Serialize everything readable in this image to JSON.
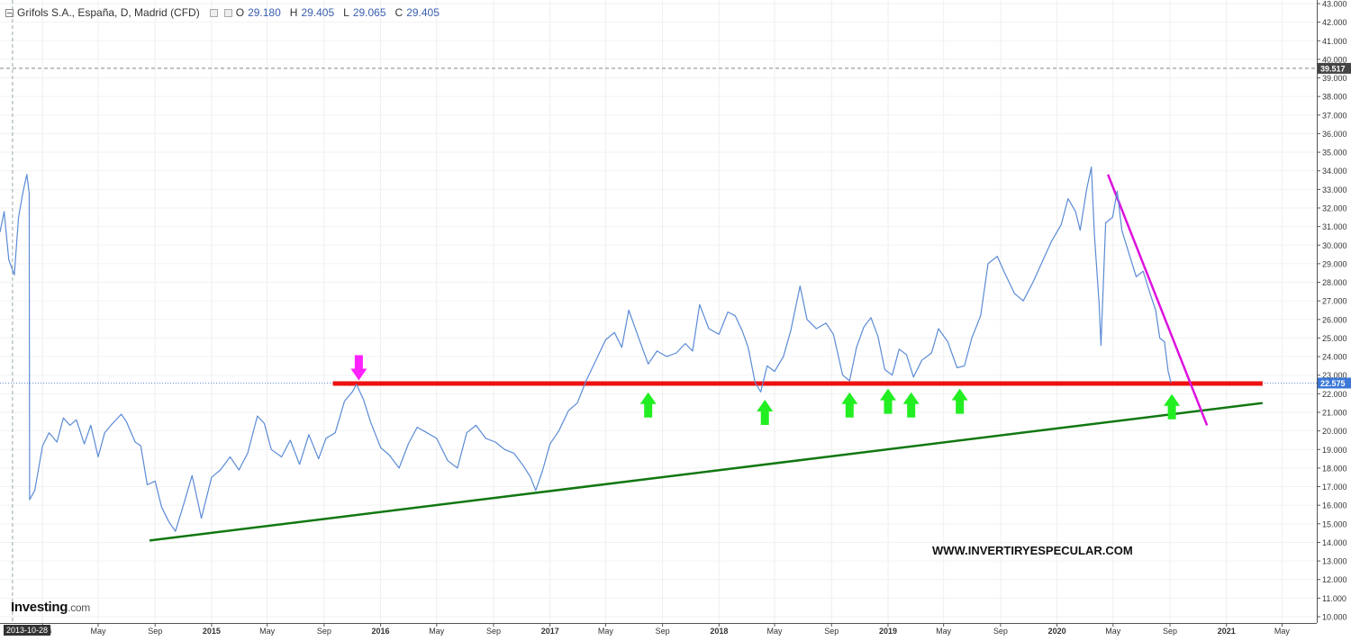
{
  "legend": {
    "title": "Grifols S.A., España, D, Madrid (CFD)",
    "o_label": "O",
    "o_value": "29.180",
    "h_label": "H",
    "h_value": "29.405",
    "l_label": "L",
    "l_value": "29.065",
    "c_label": "C",
    "c_value": "29.405"
  },
  "logo": {
    "main": "Investing",
    "domain": ".com"
  },
  "watermark": "WWW.INVERTIRYESPECULAR.COM",
  "cursor_date": "2013-10-28",
  "colors": {
    "line": "#5b8bd6",
    "support": "#ee1111",
    "trend": "#117711",
    "down": "#dd11dd",
    "up_arrow": "#22ee22",
    "down_arrow": "#ff22ff"
  },
  "chart_data": {
    "type": "line",
    "ylim": [
      10,
      43
    ],
    "xlim": [
      "2013-10-01",
      "2021-07-15"
    ],
    "y_ticks": [
      "10.000",
      "11.000",
      "12.000",
      "13.000",
      "14.000",
      "15.000",
      "16.000",
      "17.000",
      "18.000",
      "19.000",
      "20.000",
      "21.000",
      "22.000",
      "23.000",
      "24.000",
      "25.000",
      "26.000",
      "27.000",
      "28.000",
      "29.000",
      "30.000",
      "31.000",
      "32.000",
      "33.000",
      "34.000",
      "35.000",
      "36.000",
      "37.000",
      "38.000",
      "39.000",
      "40.000",
      "41.000",
      "42.000",
      "43.000"
    ],
    "x_ticks": [
      {
        "date": "2014-01-01",
        "label": "2014"
      },
      {
        "date": "2014-05-01",
        "label": "May"
      },
      {
        "date": "2014-09-01",
        "label": "Sep"
      },
      {
        "date": "2015-01-01",
        "label": "2015"
      },
      {
        "date": "2015-05-01",
        "label": "May"
      },
      {
        "date": "2015-09-01",
        "label": "Sep"
      },
      {
        "date": "2016-01-01",
        "label": "2016"
      },
      {
        "date": "2016-05-01",
        "label": "May"
      },
      {
        "date": "2016-09-01",
        "label": "Sep"
      },
      {
        "date": "2017-01-01",
        "label": "2017"
      },
      {
        "date": "2017-05-01",
        "label": "May"
      },
      {
        "date": "2017-09-01",
        "label": "Sep"
      },
      {
        "date": "2018-01-01",
        "label": "2018"
      },
      {
        "date": "2018-05-01",
        "label": "May"
      },
      {
        "date": "2018-09-01",
        "label": "Sep"
      },
      {
        "date": "2019-01-01",
        "label": "2019"
      },
      {
        "date": "2019-05-01",
        "label": "May"
      },
      {
        "date": "2019-09-01",
        "label": "Sep"
      },
      {
        "date": "2020-01-01",
        "label": "2020"
      },
      {
        "date": "2020-05-01",
        "label": "May"
      },
      {
        "date": "2020-09-01",
        "label": "Sep"
      },
      {
        "date": "2021-01-01",
        "label": "2021"
      },
      {
        "date": "2021-05-01",
        "label": "May"
      }
    ],
    "price_labels": [
      {
        "value": 39.517,
        "label": "39.517",
        "style": "dark"
      },
      {
        "value": 22.575,
        "label": "22.575",
        "style": "blue"
      }
    ],
    "series": [
      {
        "points": [
          [
            "2013-10-01",
            30.7
          ],
          [
            "2013-10-10",
            31.8
          ],
          [
            "2013-10-20",
            29.2
          ],
          [
            "2013-11-01",
            28.4
          ],
          [
            "2013-11-10",
            31.5
          ],
          [
            "2013-11-20",
            32.9
          ],
          [
            "2013-11-28",
            33.8
          ],
          [
            "2013-12-03",
            32.8
          ],
          [
            "2013-12-04",
            16.3
          ],
          [
            "2013-12-15",
            16.8
          ],
          [
            "2014-01-01",
            19.2
          ],
          [
            "2014-01-15",
            19.9
          ],
          [
            "2014-02-01",
            19.4
          ],
          [
            "2014-02-15",
            20.7
          ],
          [
            "2014-03-01",
            20.3
          ],
          [
            "2014-03-15",
            20.6
          ],
          [
            "2014-04-01",
            19.3
          ],
          [
            "2014-04-15",
            20.3
          ],
          [
            "2014-05-01",
            18.6
          ],
          [
            "2014-05-15",
            19.9
          ],
          [
            "2014-06-01",
            20.4
          ],
          [
            "2014-06-20",
            20.9
          ],
          [
            "2014-07-01",
            20.5
          ],
          [
            "2014-07-20",
            19.4
          ],
          [
            "2014-08-01",
            19.2
          ],
          [
            "2014-08-15",
            17.1
          ],
          [
            "2014-09-01",
            17.3
          ],
          [
            "2014-09-15",
            15.9
          ],
          [
            "2014-10-01",
            15.1
          ],
          [
            "2014-10-15",
            14.6
          ],
          [
            "2014-11-01",
            16.0
          ],
          [
            "2014-11-20",
            17.6
          ],
          [
            "2014-12-10",
            15.3
          ],
          [
            "2015-01-01",
            17.5
          ],
          [
            "2015-01-20",
            17.9
          ],
          [
            "2015-02-10",
            18.6
          ],
          [
            "2015-03-01",
            17.9
          ],
          [
            "2015-03-20",
            18.8
          ],
          [
            "2015-04-10",
            20.8
          ],
          [
            "2015-04-25",
            20.4
          ],
          [
            "2015-05-10",
            19.0
          ],
          [
            "2015-06-01",
            18.6
          ],
          [
            "2015-06-20",
            19.5
          ],
          [
            "2015-07-10",
            18.2
          ],
          [
            "2015-07-30",
            19.8
          ],
          [
            "2015-08-20",
            18.5
          ],
          [
            "2015-09-05",
            19.6
          ],
          [
            "2015-09-25",
            19.9
          ],
          [
            "2015-10-15",
            21.6
          ],
          [
            "2015-11-01",
            22.1
          ],
          [
            "2015-11-10",
            22.5
          ],
          [
            "2015-11-25",
            21.7
          ],
          [
            "2015-12-10",
            20.5
          ],
          [
            "2016-01-01",
            19.1
          ],
          [
            "2016-01-20",
            18.7
          ],
          [
            "2016-02-10",
            18.0
          ],
          [
            "2016-03-01",
            19.3
          ],
          [
            "2016-03-20",
            20.2
          ],
          [
            "2016-04-10",
            19.9
          ],
          [
            "2016-05-01",
            19.6
          ],
          [
            "2016-05-25",
            18.4
          ],
          [
            "2016-06-15",
            18.0
          ],
          [
            "2016-07-05",
            19.9
          ],
          [
            "2016-07-25",
            20.3
          ],
          [
            "2016-08-15",
            19.6
          ],
          [
            "2016-09-05",
            19.4
          ],
          [
            "2016-09-25",
            19.0
          ],
          [
            "2016-10-15",
            18.8
          ],
          [
            "2016-11-05",
            18.1
          ],
          [
            "2016-11-20",
            17.5
          ],
          [
            "2016-12-01",
            16.8
          ],
          [
            "2016-12-15",
            17.8
          ],
          [
            "2017-01-01",
            19.3
          ],
          [
            "2017-01-20",
            20.0
          ],
          [
            "2017-02-10",
            21.1
          ],
          [
            "2017-03-01",
            21.5
          ],
          [
            "2017-03-20",
            22.7
          ],
          [
            "2017-04-10",
            23.8
          ],
          [
            "2017-05-01",
            24.9
          ],
          [
            "2017-05-20",
            25.3
          ],
          [
            "2017-06-05",
            24.5
          ],
          [
            "2017-06-20",
            26.5
          ],
          [
            "2017-07-10",
            25.1
          ],
          [
            "2017-08-01",
            23.6
          ],
          [
            "2017-08-20",
            24.3
          ],
          [
            "2017-09-10",
            24.0
          ],
          [
            "2017-10-01",
            24.2
          ],
          [
            "2017-10-20",
            24.7
          ],
          [
            "2017-11-05",
            24.3
          ],
          [
            "2017-11-20",
            26.8
          ],
          [
            "2017-12-10",
            25.5
          ],
          [
            "2018-01-01",
            25.2
          ],
          [
            "2018-01-20",
            26.4
          ],
          [
            "2018-02-05",
            26.2
          ],
          [
            "2018-02-20",
            25.4
          ],
          [
            "2018-03-05",
            24.5
          ],
          [
            "2018-03-20",
            22.6
          ],
          [
            "2018-04-01",
            22.1
          ],
          [
            "2018-04-15",
            23.5
          ],
          [
            "2018-05-01",
            23.2
          ],
          [
            "2018-05-20",
            24.0
          ],
          [
            "2018-06-05",
            25.4
          ],
          [
            "2018-06-25",
            27.8
          ],
          [
            "2018-07-10",
            26.0
          ],
          [
            "2018-07-30",
            25.5
          ],
          [
            "2018-08-20",
            25.8
          ],
          [
            "2018-09-05",
            25.2
          ],
          [
            "2018-09-25",
            23.0
          ],
          [
            "2018-10-10",
            22.7
          ],
          [
            "2018-10-25",
            24.5
          ],
          [
            "2018-11-10",
            25.6
          ],
          [
            "2018-11-25",
            26.1
          ],
          [
            "2018-12-10",
            25.1
          ],
          [
            "2018-12-25",
            23.3
          ],
          [
            "2019-01-10",
            23.0
          ],
          [
            "2019-01-25",
            24.4
          ],
          [
            "2019-02-10",
            24.1
          ],
          [
            "2019-02-25",
            22.9
          ],
          [
            "2019-03-15",
            23.8
          ],
          [
            "2019-04-05",
            24.2
          ],
          [
            "2019-04-20",
            25.5
          ],
          [
            "2019-05-10",
            24.8
          ],
          [
            "2019-05-30",
            23.4
          ],
          [
            "2019-06-15",
            23.5
          ],
          [
            "2019-07-01",
            25.0
          ],
          [
            "2019-07-20",
            26.2
          ],
          [
            "2019-08-05",
            29.0
          ],
          [
            "2019-08-25",
            29.4
          ],
          [
            "2019-09-10",
            28.5
          ],
          [
            "2019-10-01",
            27.4
          ],
          [
            "2019-10-20",
            27.0
          ],
          [
            "2019-11-10",
            28.0
          ],
          [
            "2019-11-30",
            29.1
          ],
          [
            "2019-12-20",
            30.2
          ],
          [
            "2020-01-10",
            31.1
          ],
          [
            "2020-01-25",
            32.5
          ],
          [
            "2020-02-10",
            31.8
          ],
          [
            "2020-02-20",
            30.8
          ],
          [
            "2020-03-05",
            33.0
          ],
          [
            "2020-03-15",
            34.2
          ],
          [
            "2020-03-22",
            30.5
          ],
          [
            "2020-04-01",
            26.8
          ],
          [
            "2020-04-05",
            24.6
          ],
          [
            "2020-04-15",
            31.2
          ],
          [
            "2020-04-30",
            31.5
          ],
          [
            "2020-05-10",
            32.9
          ],
          [
            "2020-05-20",
            30.8
          ],
          [
            "2020-06-05",
            29.5
          ],
          [
            "2020-06-20",
            28.3
          ],
          [
            "2020-07-05",
            28.6
          ],
          [
            "2020-07-20",
            27.4
          ],
          [
            "2020-08-01",
            26.5
          ],
          [
            "2020-08-10",
            25.0
          ],
          [
            "2020-08-20",
            24.8
          ],
          [
            "2020-08-28",
            23.2
          ],
          [
            "2020-09-03",
            22.6
          ]
        ]
      }
    ],
    "annotations": {
      "support_level": {
        "value": 22.55,
        "from": "2015-09-20",
        "to": "2021-03-20"
      },
      "trendline_up": {
        "from": [
          "2014-08-20",
          14.1
        ],
        "to": [
          "2021-03-20",
          21.5
        ]
      },
      "trendline_down": {
        "from": [
          "2020-04-20",
          33.8
        ],
        "to": [
          "2020-11-20",
          20.3
        ]
      },
      "up_arrows": [
        [
          "2017-08-01",
          21.4
        ],
        [
          "2018-04-10",
          21.0
        ],
        [
          "2018-10-10",
          21.4
        ],
        [
          "2019-01-01",
          21.6
        ],
        [
          "2019-02-20",
          21.4
        ],
        [
          "2019-06-05",
          21.6
        ],
        [
          "2020-09-05",
          21.3
        ]
      ],
      "down_arrows": [
        [
          "2015-11-15",
          23.4
        ]
      ]
    }
  }
}
